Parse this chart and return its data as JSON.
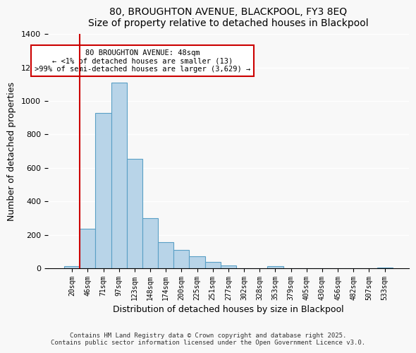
{
  "title": "80, BROUGHTON AVENUE, BLACKPOOL, FY3 8EQ",
  "subtitle": "Size of property relative to detached houses in Blackpool",
  "xlabel": "Distribution of detached houses by size in Blackpool",
  "ylabel": "Number of detached properties",
  "bins": [
    "20sqm",
    "46sqm",
    "71sqm",
    "97sqm",
    "123sqm",
    "148sqm",
    "174sqm",
    "200sqm",
    "225sqm",
    "251sqm",
    "277sqm",
    "302sqm",
    "328sqm",
    "353sqm",
    "379sqm",
    "405sqm",
    "430sqm",
    "456sqm",
    "482sqm",
    "507sqm",
    "533sqm"
  ],
  "values": [
    13,
    235,
    930,
    1110,
    655,
    298,
    158,
    108,
    70,
    38,
    18,
    0,
    0,
    15,
    0,
    0,
    0,
    0,
    0,
    0,
    5
  ],
  "bar_color": "#b8d4e8",
  "bar_edge_color": "#5a9fc5",
  "vline_x": 0,
  "vline_color": "#cc0000",
  "annotation_title": "80 BROUGHTON AVENUE: 48sqm",
  "annotation_line1": "← <1% of detached houses are smaller (13)",
  "annotation_line2": ">99% of semi-detached houses are larger (3,629) →",
  "annotation_box_color": "#ffffff",
  "annotation_box_edge_color": "#cc0000",
  "ylim": [
    0,
    1400
  ],
  "yticks": [
    0,
    200,
    400,
    600,
    800,
    1000,
    1200,
    1400
  ],
  "footer1": "Contains HM Land Registry data © Crown copyright and database right 2025.",
  "footer2": "Contains public sector information licensed under the Open Government Licence v3.0.",
  "background_color": "#f8f8f8"
}
